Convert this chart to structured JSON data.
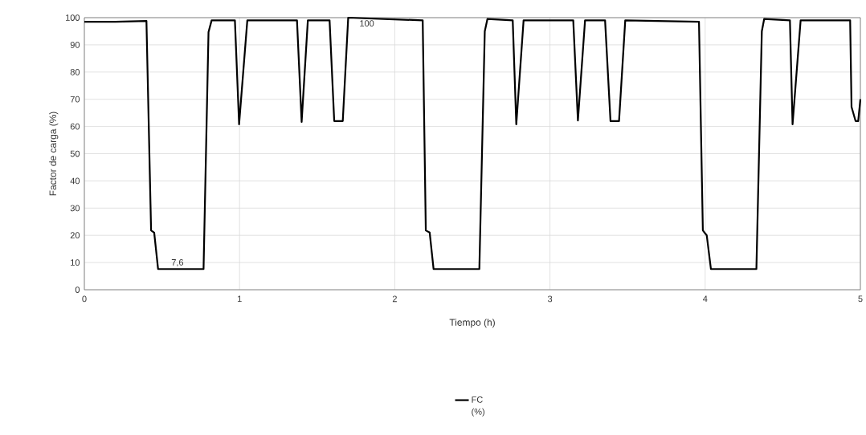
{
  "chart_data": {
    "type": "line",
    "xlabel": "Tiempo (h)",
    "ylabel": "Factor de carga (%)",
    "xlim": [
      0,
      5
    ],
    "ylim": [
      0,
      100
    ],
    "xticks": [
      0,
      1,
      2,
      3,
      4,
      5
    ],
    "yticks": [
      0,
      10,
      20,
      30,
      40,
      50,
      60,
      70,
      80,
      90,
      100
    ],
    "grid": true,
    "legend": "bottom",
    "line_style": "solid",
    "marker": "none",
    "annotations": [
      {
        "text": "7,6",
        "x": 0.6,
        "y": 7.6
      },
      {
        "text": "100",
        "x": 1.82,
        "y": 100
      }
    ],
    "series": [
      {
        "name": "FC (%)",
        "color": "#000000",
        "x": [
          0,
          0.2,
          0.4,
          0.43,
          0.45,
          0.475,
          0.768,
          0.8,
          0.82,
          0.97,
          0.997,
          1.05,
          1.37,
          1.4,
          1.44,
          1.58,
          1.61,
          1.665,
          1.7,
          2.18,
          2.2,
          2.225,
          2.25,
          2.545,
          2.58,
          2.597,
          2.76,
          2.783,
          2.83,
          3.15,
          3.18,
          3.226,
          3.355,
          3.39,
          3.445,
          3.485,
          3.96,
          3.985,
          4.01,
          4.037,
          4.33,
          4.365,
          4.38,
          4.546,
          4.563,
          4.615,
          4.934,
          4.943,
          4.969,
          4.986,
          5.0
        ],
        "values": [
          98.5,
          98.5,
          98.8,
          21.8,
          21,
          7.6,
          7.6,
          94.7,
          99,
          99,
          60.8,
          99,
          99,
          61.7,
          99,
          99,
          62,
          62,
          100,
          99,
          21.8,
          21,
          7.6,
          7.6,
          95,
          99.5,
          99,
          60.8,
          99,
          99,
          62.2,
          99,
          99,
          62,
          62,
          99,
          98.5,
          21.8,
          20,
          7.6,
          7.6,
          95,
          99.5,
          99,
          60.8,
          99,
          99,
          67.2,
          62,
          62,
          70
        ]
      }
    ]
  }
}
